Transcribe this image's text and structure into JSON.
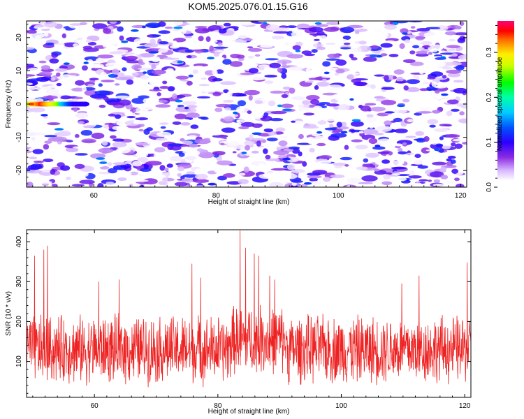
{
  "title": "KOM5.2025.076.01.15.G16",
  "chart_data": [
    {
      "type": "heatmap",
      "xlabel": "Height of straight line (km)",
      "ylabel": "Frequency (Hz)",
      "xlim": [
        49,
        121
      ],
      "ylim": [
        -25,
        25
      ],
      "x_ticks": [
        60,
        80,
        100,
        120
      ],
      "y_ticks": [
        -20,
        -10,
        0,
        10,
        20
      ],
      "grid": false,
      "colorbar": {
        "label": "Normalized spectral amplitude",
        "range": [
          0.0,
          0.37
        ],
        "ticks": [
          0.0,
          0.1,
          0.2,
          0.3
        ],
        "colormap": [
          "#ffffff",
          "#d8b8ff",
          "#8a2be2",
          "#5500ff",
          "#0000ff",
          "#00aaff",
          "#00ffaa",
          "#00ff00",
          "#ffff00",
          "#ff8800",
          "#ff0000",
          "#ff0066"
        ]
      },
      "features": [
        {
          "x_start": 49,
          "x_end": 59,
          "y": 0,
          "peak_amplitude": 0.34
        }
      ],
      "background_amplitude_range": [
        0.0,
        0.12
      ]
    },
    {
      "type": "line",
      "xlabel": "Height of straight line (km)",
      "ylabel": "SNR (10 * v/v)",
      "xlim": [
        49,
        121
      ],
      "ylim": [
        10,
        430
      ],
      "x_ticks": [
        60,
        80,
        100,
        120
      ],
      "y_ticks": [
        100,
        200,
        300,
        400
      ],
      "grid": false,
      "series": [
        {
          "color": "#ee2222",
          "x_start": 49,
          "x_end": 121,
          "baseline": 130,
          "spread": 80,
          "peaks": [
            {
              "x": 50.3,
              "y": 365
            },
            {
              "x": 51.8,
              "y": 380
            },
            {
              "x": 52.4,
              "y": 390
            },
            {
              "x": 60.7,
              "y": 300
            },
            {
              "x": 64.0,
              "y": 305
            },
            {
              "x": 75.8,
              "y": 345
            },
            {
              "x": 77.2,
              "y": 310
            },
            {
              "x": 83.6,
              "y": 428
            },
            {
              "x": 84.5,
              "y": 385
            },
            {
              "x": 85.9,
              "y": 370
            },
            {
              "x": 86.6,
              "y": 365
            },
            {
              "x": 88.4,
              "y": 315
            },
            {
              "x": 89.2,
              "y": 305
            },
            {
              "x": 109.8,
              "y": 295
            },
            {
              "x": 112.6,
              "y": 315
            },
            {
              "x": 120.4,
              "y": 348
            }
          ]
        }
      ]
    }
  ]
}
